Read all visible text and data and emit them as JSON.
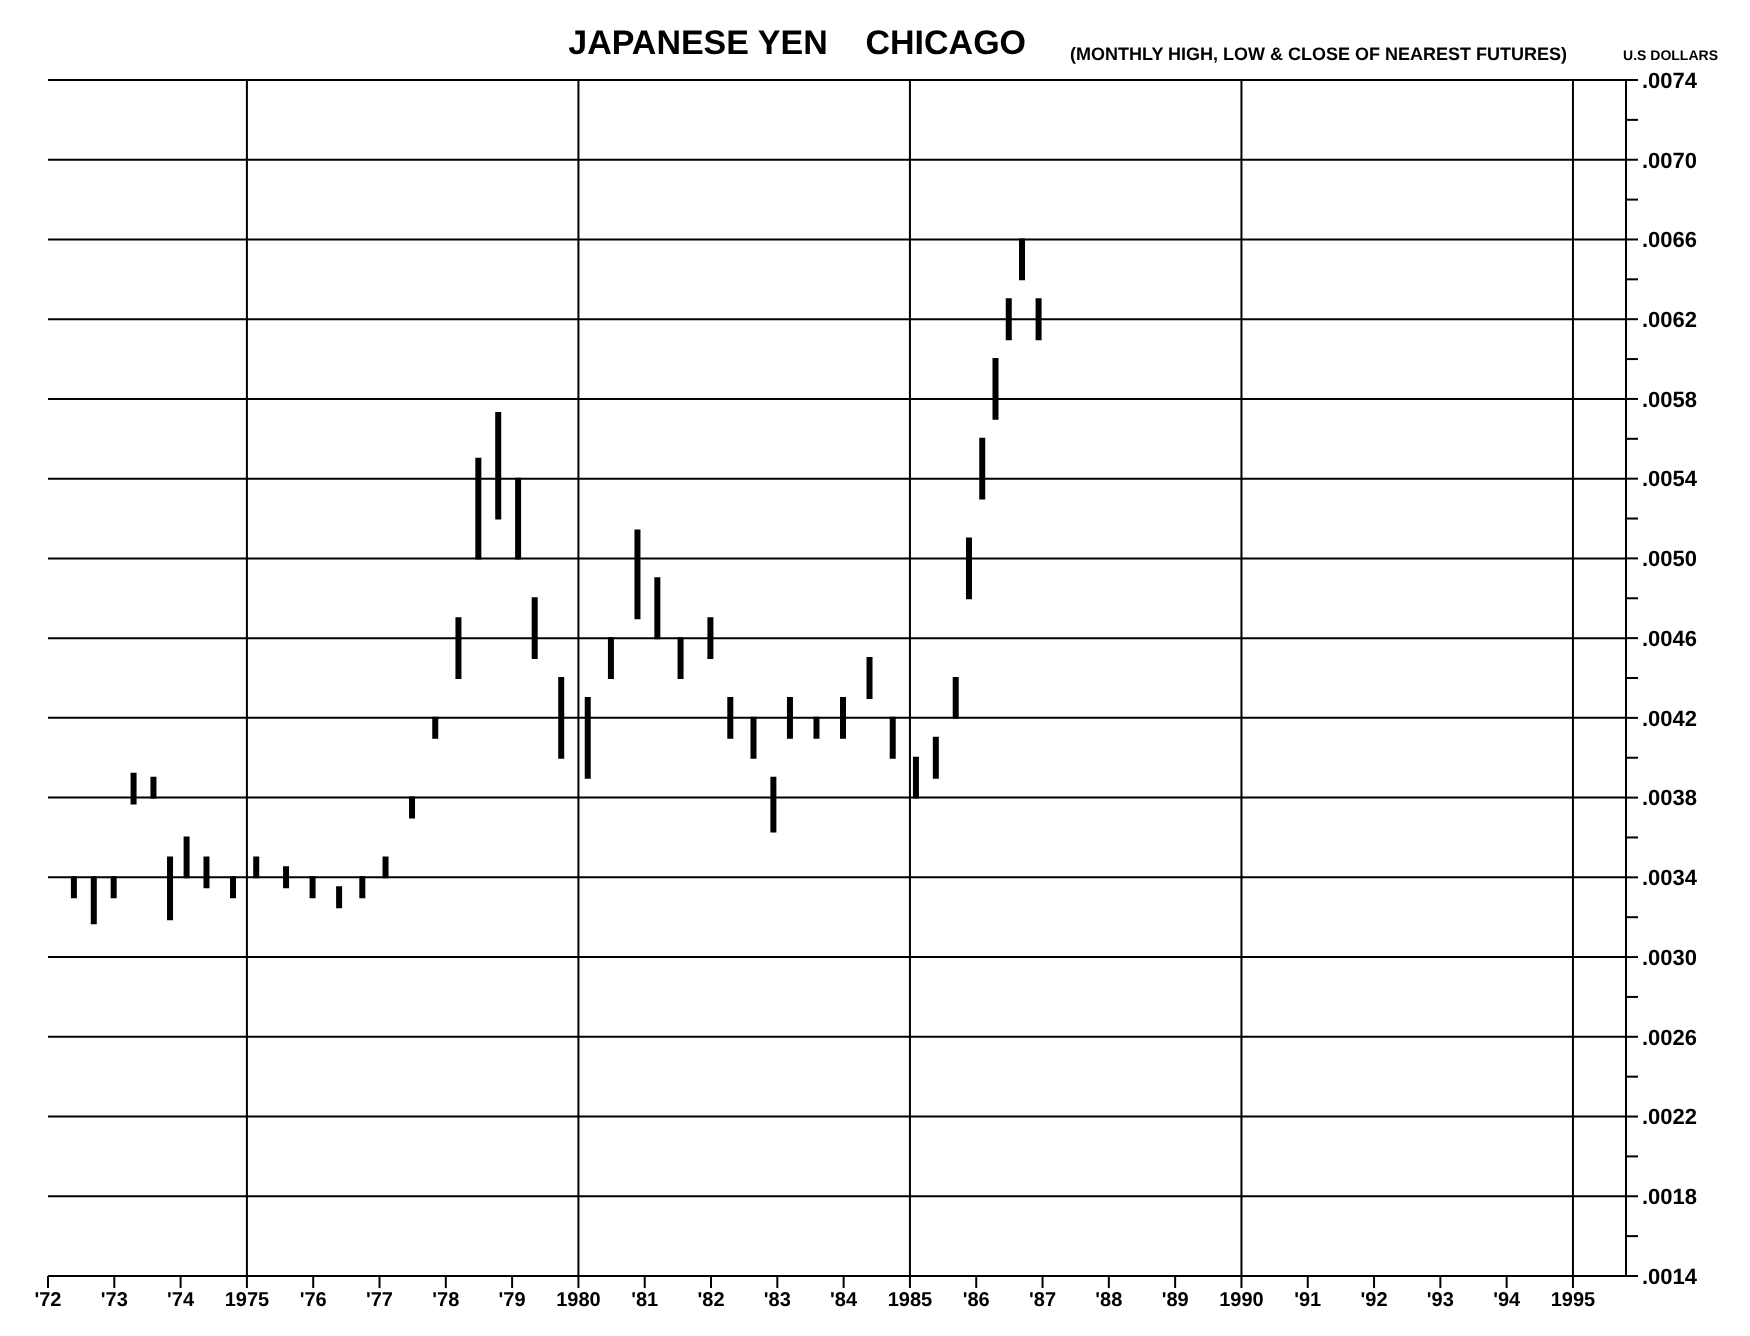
{
  "chart_data": {
    "type": "bar",
    "title": "JAPANESE YEN    CHICAGO",
    "subtitle": "(MONTHLY HIGH, LOW & CLOSE OF NEAREST FUTURES)",
    "ylabel": "U.S DOLLARS",
    "x": [
      1972.4,
      1972.7,
      1973.0,
      1973.3,
      1973.6,
      1973.85,
      1974.1,
      1974.4,
      1974.8,
      1975.15,
      1975.6,
      1976.0,
      1976.4,
      1976.75,
      1977.1,
      1977.5,
      1977.85,
      1978.2,
      1978.5,
      1978.8,
      1979.1,
      1979.35,
      1979.75,
      1980.15,
      1980.5,
      1980.9,
      1981.2,
      1981.55,
      1982.0,
      1982.3,
      1982.65,
      1982.95,
      1983.2,
      1983.6,
      1984.0,
      1984.4,
      1984.75,
      1985.1,
      1985.4,
      1985.7,
      1985.9,
      1986.1,
      1986.3,
      1986.5,
      1986.7,
      1986.95
    ],
    "base": [
      0.0033,
      0.00317,
      0.0033,
      0.00377,
      0.0038,
      0.00319,
      0.0034,
      0.00335,
      0.0033,
      0.0034,
      0.00335,
      0.0033,
      0.00325,
      0.0033,
      0.0034,
      0.0037,
      0.0041,
      0.0044,
      0.005,
      0.0052,
      0.005,
      0.0045,
      0.004,
      0.0039,
      0.0044,
      0.0047,
      0.0046,
      0.0044,
      0.0045,
      0.0041,
      0.004,
      0.00363,
      0.0041,
      0.0041,
      0.0041,
      0.0043,
      0.004,
      0.0038,
      0.0039,
      0.0042,
      0.0048,
      0.0053,
      0.0057,
      0.0061,
      0.0064,
      0.0061
    ],
    "values": [
      0.0001,
      0.00023,
      0.0001,
      0.00015,
      0.0001,
      0.00031,
      0.0002,
      0.00015,
      0.0001,
      0.0001,
      0.0001,
      0.0001,
      0.0001,
      0.0001,
      0.0001,
      0.0001,
      0.0001,
      0.0003,
      0.0005,
      0.00053,
      0.0004,
      0.0003,
      0.0004,
      0.0004,
      0.0002,
      0.00044,
      0.0003,
      0.0002,
      0.0002,
      0.0002,
      0.0002,
      0.00027,
      0.0002,
      0.0001,
      0.0002,
      0.0002,
      0.0002,
      0.0002,
      0.0002,
      0.0002,
      0.0003,
      0.0003,
      0.0003,
      0.0002,
      0.0002,
      0.0002
    ],
    "color": "#000000",
    "xlim": [
      1972,
      1995.8
    ],
    "xticks": [
      {
        "value": 1972,
        "label": "'72"
      },
      {
        "value": 1973,
        "label": "'73"
      },
      {
        "value": 1974,
        "label": "'74"
      },
      1975,
      {
        "value": 1976,
        "label": "'76"
      },
      {
        "value": 1977,
        "label": "'77"
      },
      {
        "value": 1978,
        "label": "'78"
      },
      {
        "value": 1979,
        "label": "'79"
      },
      1980,
      {
        "value": 1981,
        "label": "'81"
      },
      {
        "value": 1982,
        "label": "'82"
      },
      {
        "value": 1983,
        "label": "'83"
      },
      {
        "value": 1984,
        "label": "'84"
      },
      1985,
      {
        "value": 1986,
        "label": "'86"
      },
      {
        "value": 1987,
        "label": "'87"
      },
      {
        "value": 1988,
        "label": "'88"
      },
      {
        "value": 1989,
        "label": "'89"
      },
      1990,
      {
        "value": 1991,
        "label": "'91"
      },
      {
        "value": 1992,
        "label": "'92"
      },
      {
        "value": 1993,
        "label": "'93"
      },
      {
        "value": 1994,
        "label": "'94"
      },
      1995
    ],
    "ylim": [
      0.0014,
      0.0074
    ],
    "yticks": [
      {
        "value": 0.0014,
        "label": ".0014"
      },
      {
        "value": 0.0016,
        "label": null
      },
      {
        "value": 0.0018,
        "label": ".0018"
      },
      {
        "value": 0.002,
        "label": null
      },
      {
        "value": 0.0022,
        "label": ".0022"
      },
      {
        "value": 0.0024,
        "label": null
      },
      {
        "value": 0.0026,
        "label": ".0026"
      },
      {
        "value": 0.0028,
        "label": null
      },
      {
        "value": 0.003,
        "label": ".0030"
      },
      {
        "value": 0.0032,
        "label": null
      },
      {
        "value": 0.0034,
        "label": ".0034"
      },
      {
        "value": 0.0036,
        "label": null
      },
      {
        "value": 0.0038,
        "label": ".0038"
      },
      {
        "value": 0.004,
        "label": null
      },
      {
        "value": 0.0042,
        "label": ".0042"
      },
      {
        "value": 0.0044,
        "label": null
      },
      {
        "value": 0.0046,
        "label": ".0046"
      },
      {
        "value": 0.0048,
        "label": null
      },
      {
        "value": 0.005,
        "label": ".0050"
      },
      {
        "value": 0.0052,
        "label": null
      },
      {
        "value": 0.0054,
        "label": ".0054"
      },
      {
        "value": 0.0056,
        "label": null
      },
      {
        "value": 0.0058,
        "label": ".0058"
      },
      {
        "value": 0.006,
        "label": null
      },
      {
        "value": 0.0062,
        "label": ".0062"
      },
      {
        "value": 0.0064,
        "label": null
      },
      {
        "value": 0.0066,
        "label": ".0066"
      },
      {
        "value": 0.0068,
        "label": null
      },
      {
        "value": 0.007,
        "label": ".0070"
      },
      {
        "value": 0.0072,
        "label": null
      },
      {
        "value": 0.0074,
        "label": ".0074"
      }
    ],
    "grid": "y",
    "ref_lines": [
      {
        "axis": "x",
        "value": 1975
      },
      {
        "axis": "x",
        "value": 1980
      },
      {
        "axis": "x",
        "value": 1985
      },
      {
        "axis": "x",
        "value": 1990
      },
      {
        "axis": "x",
        "value": 1995
      }
    ]
  }
}
